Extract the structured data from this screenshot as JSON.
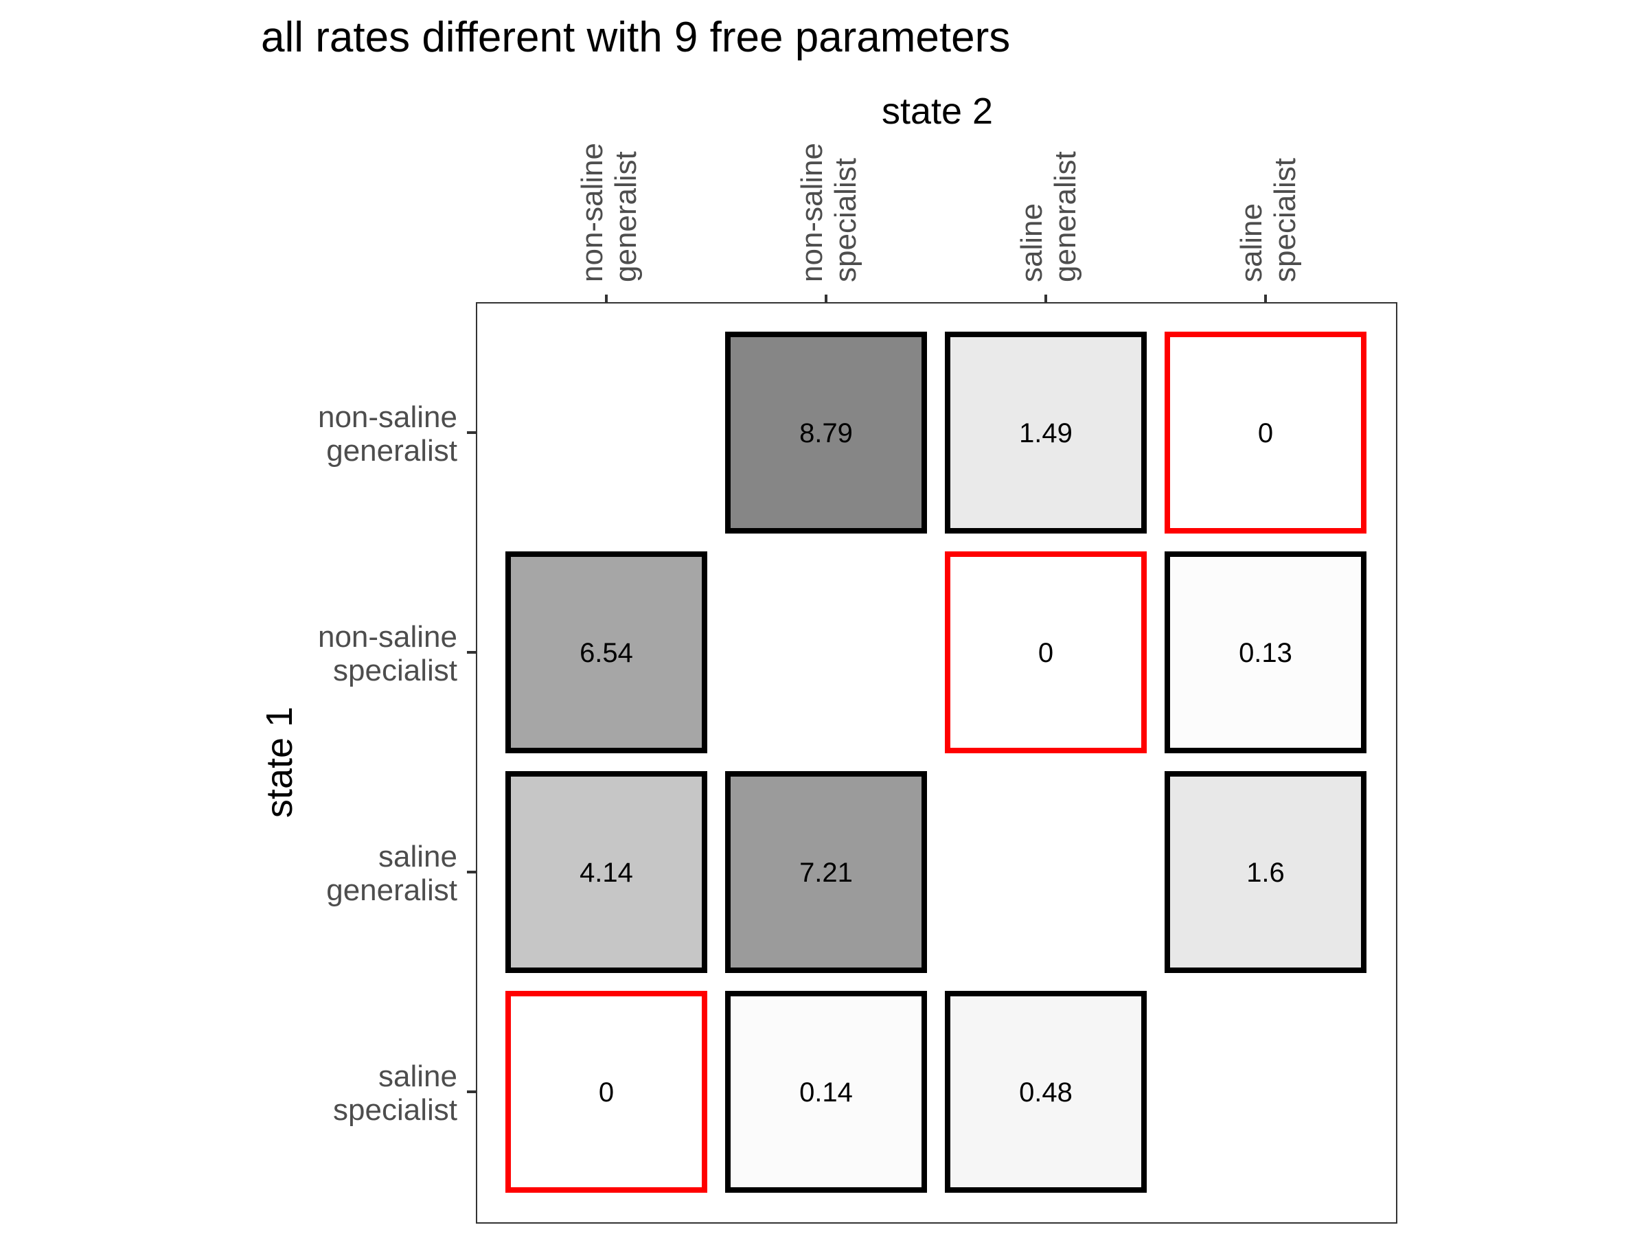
{
  "chart_data": {
    "type": "heatmap",
    "title": "all rates different with 9 free parameters",
    "xlabel": "state 2",
    "ylabel": "state 1",
    "x_categories": [
      [
        "non-saline",
        "generalist"
      ],
      [
        "non-saline",
        "specialist"
      ],
      [
        "saline",
        "generalist"
      ],
      [
        "saline",
        "specialist"
      ]
    ],
    "y_categories": [
      [
        "non-saline",
        "generalist"
      ],
      [
        "non-saline",
        "specialist"
      ],
      [
        "saline",
        "generalist"
      ],
      [
        "saline",
        "specialist"
      ]
    ],
    "cells": [
      {
        "row": 0,
        "col": 1,
        "value": "8.79",
        "fill": "#868686",
        "border": "black"
      },
      {
        "row": 0,
        "col": 2,
        "value": "1.49",
        "fill": "#eaeaea",
        "border": "black"
      },
      {
        "row": 0,
        "col": 3,
        "value": "0",
        "fill": "#ffffff",
        "border": "red"
      },
      {
        "row": 1,
        "col": 0,
        "value": "6.54",
        "fill": "#a6a6a6",
        "border": "black"
      },
      {
        "row": 1,
        "col": 2,
        "value": "0",
        "fill": "#ffffff",
        "border": "red"
      },
      {
        "row": 1,
        "col": 3,
        "value": "0.13",
        "fill": "#fcfcfc",
        "border": "black"
      },
      {
        "row": 2,
        "col": 0,
        "value": "4.14",
        "fill": "#c6c6c6",
        "border": "black"
      },
      {
        "row": 2,
        "col": 1,
        "value": "7.21",
        "fill": "#9b9b9b",
        "border": "black"
      },
      {
        "row": 2,
        "col": 3,
        "value": "1.6",
        "fill": "#e8e8e8",
        "border": "black"
      },
      {
        "row": 3,
        "col": 0,
        "value": "0",
        "fill": "#ffffff",
        "border": "red"
      },
      {
        "row": 3,
        "col": 1,
        "value": "0.14",
        "fill": "#fbfbfb",
        "border": "black"
      },
      {
        "row": 3,
        "col": 2,
        "value": "0.48",
        "fill": "#f6f6f6",
        "border": "black"
      }
    ],
    "grid": false,
    "legend": "none",
    "colors": {
      "black": "#000000",
      "red": "#ff0000",
      "panel_border": "#333333",
      "tick": "#333333",
      "tick_label": "#4d4d4d",
      "text": "#000000"
    }
  }
}
